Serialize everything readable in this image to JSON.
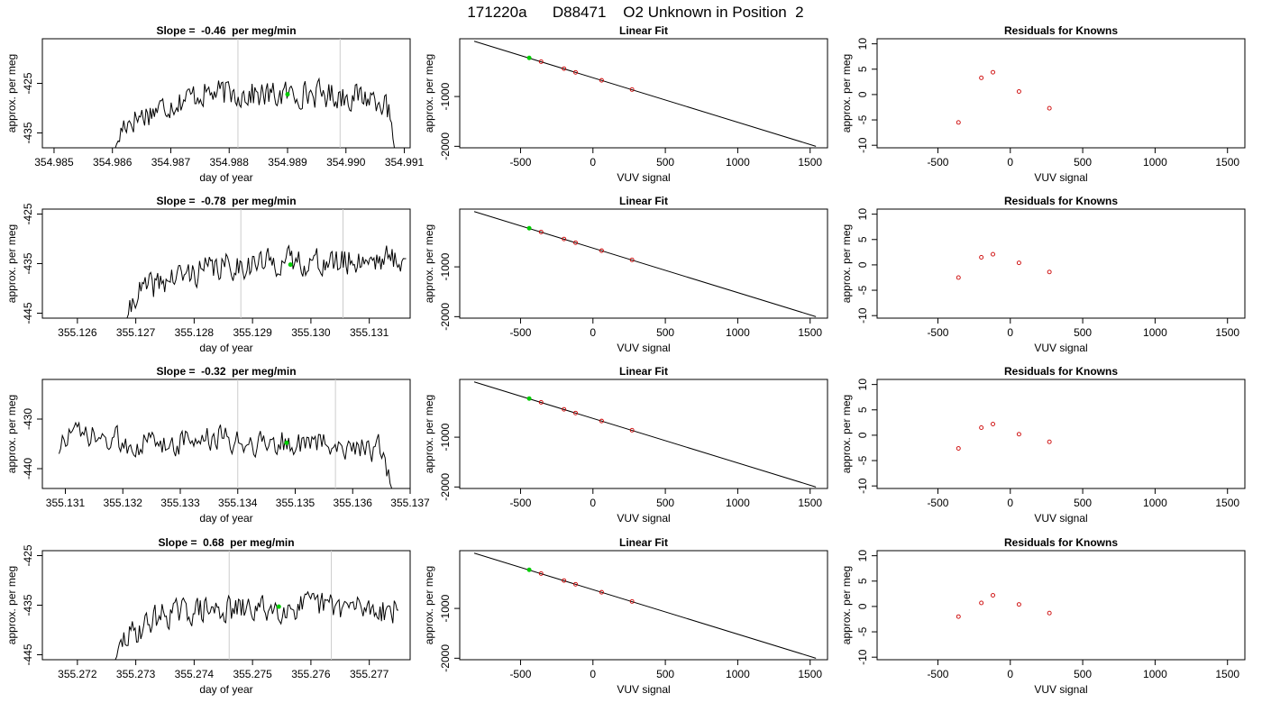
{
  "page_title": "171220a      D88471    O2 Unknown in Position  2",
  "colors": {
    "trace": "#000000",
    "marker": "#00cc00",
    "residual": "#cc0000",
    "vline": "#cccccc"
  },
  "chart_data": [
    {
      "type": "line",
      "panel": "time-series-1",
      "title": "Slope =  -0.46  per meg/min",
      "xlabel": "day of year",
      "ylabel": "approx. per meg",
      "xlim": [
        354.9848,
        354.9911
      ],
      "ylim": [
        -438,
        -416
      ],
      "xticks": [
        354.985,
        354.986,
        354.987,
        354.988,
        354.989,
        354.99,
        354.991
      ],
      "xtick_labels": [
        "354.985",
        "354.986",
        "354.987",
        "354.988",
        "354.989",
        "354.990",
        "354.991"
      ],
      "yticks": [
        -425,
        -435
      ],
      "ytick_labels": [
        "-425",
        "-435"
      ],
      "vlines": [
        354.98815,
        354.9899
      ],
      "trace_start": 354.98605,
      "trace_end": 354.99083,
      "trace_seed": 17,
      "trace_points": [
        [
          354.98605,
          -438
        ],
        [
          354.9862,
          -433
        ],
        [
          354.9868,
          -430
        ],
        [
          354.9875,
          -427
        ],
        [
          354.9881,
          -427
        ],
        [
          354.9887,
          -427.5
        ],
        [
          354.9893,
          -427
        ],
        [
          354.99,
          -427.5
        ],
        [
          354.9906,
          -428
        ],
        [
          354.99075,
          -432
        ],
        [
          354.99083,
          -438
        ]
      ],
      "marker": [
        354.989,
        -427.2
      ]
    },
    {
      "type": "scatter",
      "panel": "linear-fit-1",
      "title": "Linear Fit",
      "xlabel": "VUV signal",
      "ylabel": "approx. per meg",
      "xlim": [
        -920,
        1620
      ],
      "ylim": [
        -2030,
        160
      ],
      "xticks": [
        -500,
        0,
        500,
        1000,
        1500
      ],
      "xtick_labels": [
        "-500",
        "0",
        "500",
        "1000",
        "1500"
      ],
      "yticks": [
        -1000,
        -2000
      ],
      "ytick_labels": [
        "-1000",
        "-2000"
      ],
      "fit_line": [
        [
          -820,
          110
        ],
        [
          1540,
          -2000
        ]
      ],
      "points": [
        [
          -358,
          -300
        ],
        [
          -200,
          -440
        ],
        [
          -120,
          -515
        ],
        [
          60,
          -675
        ],
        [
          270,
          -860
        ]
      ],
      "marker": [
        -440,
        -225
      ]
    },
    {
      "type": "scatter",
      "panel": "residuals-1",
      "title": "Residuals for Knowns",
      "xlabel": "VUV signal",
      "ylabel": "approx. per meg",
      "xlim": [
        -920,
        1620
      ],
      "ylim": [
        -10.5,
        11
      ],
      "xticks": [
        -500,
        0,
        500,
        1000,
        1500
      ],
      "xtick_labels": [
        "-500",
        "0",
        "500",
        "1000",
        "1500"
      ],
      "yticks": [
        10,
        5,
        0,
        -5,
        -10
      ],
      "ytick_labels": [
        "10",
        "5",
        "0",
        "-5",
        "-10"
      ],
      "points": [
        [
          -358,
          -5.5
        ],
        [
          -200,
          3.3
        ],
        [
          -120,
          4.4
        ],
        [
          60,
          0.6
        ],
        [
          270,
          -2.7
        ]
      ]
    },
    {
      "type": "line",
      "panel": "time-series-2",
      "title": "Slope =  -0.78  per meg/min",
      "xlabel": "day of year",
      "ylabel": "approx. per meg",
      "xlim": [
        355.1254,
        355.1317
      ],
      "ylim": [
        -446,
        -424
      ],
      "xticks": [
        355.126,
        355.127,
        355.128,
        355.129,
        355.13,
        355.131
      ],
      "xtick_labels": [
        "355.126",
        "355.127",
        "355.128",
        "355.129",
        "355.130",
        "355.131"
      ],
      "yticks": [
        -425,
        -435,
        -445
      ],
      "ytick_labels": [
        "-425",
        "-435",
        "-445"
      ],
      "vlines": [
        355.1288,
        355.13055
      ],
      "trace_start": 355.12685,
      "trace_end": 355.13163,
      "trace_seed": 41,
      "trace_points": [
        [
          355.12685,
          -446
        ],
        [
          355.127,
          -441
        ],
        [
          355.1276,
          -438
        ],
        [
          355.1283,
          -436
        ],
        [
          355.129,
          -435
        ],
        [
          355.1297,
          -434.5
        ],
        [
          355.1304,
          -435
        ],
        [
          355.131,
          -434
        ],
        [
          355.13163,
          -434
        ]
      ],
      "marker": [
        355.12965,
        -435.2
      ]
    },
    {
      "type": "scatter",
      "panel": "linear-fit-2",
      "title": "Linear Fit",
      "xlabel": "VUV signal",
      "ylabel": "approx. per meg",
      "xlim": [
        -920,
        1620
      ],
      "ylim": [
        -2030,
        160
      ],
      "xticks": [
        -500,
        0,
        500,
        1000,
        1500
      ],
      "xtick_labels": [
        "-500",
        "0",
        "500",
        "1000",
        "1500"
      ],
      "yticks": [
        -1000,
        -2000
      ],
      "ytick_labels": [
        "-1000",
        "-2000"
      ],
      "fit_line": [
        [
          -820,
          110
        ],
        [
          1540,
          -2000
        ]
      ],
      "points": [
        [
          -358,
          -300
        ],
        [
          -200,
          -440
        ],
        [
          -120,
          -515
        ],
        [
          60,
          -675
        ],
        [
          270,
          -860
        ]
      ],
      "marker": [
        -440,
        -225
      ]
    },
    {
      "type": "scatter",
      "panel": "residuals-2",
      "title": "Residuals for Knowns",
      "xlabel": "VUV signal",
      "ylabel": "approx. per meg",
      "xlim": [
        -920,
        1620
      ],
      "ylim": [
        -10.5,
        11
      ],
      "xticks": [
        -500,
        0,
        500,
        1000,
        1500
      ],
      "xtick_labels": [
        "-500",
        "0",
        "500",
        "1000",
        "1500"
      ],
      "yticks": [
        10,
        5,
        0,
        -5,
        -10
      ],
      "ytick_labels": [
        "10",
        "5",
        "0",
        "-5",
        "-10"
      ],
      "points": [
        [
          -358,
          -2.5
        ],
        [
          -200,
          1.5
        ],
        [
          -120,
          2.1
        ],
        [
          60,
          0.4
        ],
        [
          270,
          -1.4
        ]
      ]
    },
    {
      "type": "line",
      "panel": "time-series-3",
      "title": "Slope =  -0.32  per meg/min",
      "xlabel": "day of year",
      "ylabel": "approx. per meg",
      "xlim": [
        355.1306,
        355.137
      ],
      "ylim": [
        -444,
        -422
      ],
      "xticks": [
        355.131,
        355.132,
        355.133,
        355.134,
        355.135,
        355.136,
        355.137
      ],
      "xtick_labels": [
        "355.131",
        "355.132",
        "355.133",
        "355.134",
        "355.135",
        "355.136",
        "355.137"
      ],
      "yticks": [
        -430,
        -440
      ],
      "ytick_labels": [
        "-430",
        "-440"
      ],
      "vlines": [
        355.134,
        355.1357
      ],
      "trace_start": 355.13089,
      "trace_end": 355.13668,
      "trace_seed": 73,
      "trace_points": [
        [
          355.13089,
          -437
        ],
        [
          355.131,
          -433
        ],
        [
          355.1318,
          -434.5
        ],
        [
          355.1326,
          -435
        ],
        [
          355.1334,
          -434
        ],
        [
          355.1342,
          -434.5
        ],
        [
          355.135,
          -435
        ],
        [
          355.1358,
          -435
        ],
        [
          355.13645,
          -436
        ],
        [
          355.13668,
          -444
        ]
      ],
      "marker": [
        355.13485,
        -434.8
      ]
    },
    {
      "type": "scatter",
      "panel": "linear-fit-3",
      "title": "Linear Fit",
      "xlabel": "VUV signal",
      "ylabel": "approx. per meg",
      "xlim": [
        -920,
        1620
      ],
      "ylim": [
        -2030,
        160
      ],
      "xticks": [
        -500,
        0,
        500,
        1000,
        1500
      ],
      "xtick_labels": [
        "-500",
        "0",
        "500",
        "1000",
        "1500"
      ],
      "yticks": [
        -1000,
        -2000
      ],
      "ytick_labels": [
        "-1000",
        "-2000"
      ],
      "fit_line": [
        [
          -820,
          110
        ],
        [
          1540,
          -2000
        ]
      ],
      "points": [
        [
          -358,
          -300
        ],
        [
          -200,
          -440
        ],
        [
          -120,
          -515
        ],
        [
          60,
          -675
        ],
        [
          270,
          -860
        ]
      ],
      "marker": [
        -440,
        -225
      ]
    },
    {
      "type": "scatter",
      "panel": "residuals-3",
      "title": "Residuals for Knowns",
      "xlabel": "VUV signal",
      "ylabel": "approx. per meg",
      "xlim": [
        -920,
        1620
      ],
      "ylim": [
        -10.5,
        11
      ],
      "xticks": [
        -500,
        0,
        500,
        1000,
        1500
      ],
      "xtick_labels": [
        "-500",
        "0",
        "500",
        "1000",
        "1500"
      ],
      "yticks": [
        10,
        5,
        0,
        -5,
        -10
      ],
      "ytick_labels": [
        "10",
        "5",
        "0",
        "-5",
        "-10"
      ],
      "points": [
        [
          -358,
          -2.6
        ],
        [
          -200,
          1.5
        ],
        [
          -120,
          2.2
        ],
        [
          60,
          0.2
        ],
        [
          270,
          -1.3
        ]
      ]
    },
    {
      "type": "line",
      "panel": "time-series-4",
      "title": "Slope =  0.68  per meg/min",
      "xlabel": "day of year",
      "ylabel": "approx. per meg",
      "xlim": [
        355.2714,
        355.2777
      ],
      "ylim": [
        -446,
        -424
      ],
      "xticks": [
        355.272,
        355.273,
        355.274,
        355.275,
        355.276,
        355.277
      ],
      "xtick_labels": [
        "355.272",
        "355.273",
        "355.274",
        "355.275",
        "355.276",
        "355.277"
      ],
      "yticks": [
        -425,
        -435,
        -445
      ],
      "ytick_labels": [
        "-425",
        "-435",
        "-445"
      ],
      "vlines": [
        355.2746,
        355.27635
      ],
      "trace_start": 355.27265,
      "trace_end": 355.2775,
      "trace_seed": 29,
      "trace_points": [
        [
          355.27265,
          -446
        ],
        [
          355.2728,
          -442
        ],
        [
          355.2734,
          -437
        ],
        [
          355.2741,
          -436
        ],
        [
          355.2748,
          -436
        ],
        [
          355.2755,
          -435.5
        ],
        [
          355.2762,
          -435
        ],
        [
          355.2768,
          -435.5
        ],
        [
          355.2775,
          -436
        ]
      ],
      "marker": [
        355.27545,
        -435.3
      ]
    },
    {
      "type": "scatter",
      "panel": "linear-fit-4",
      "title": "Linear Fit",
      "xlabel": "VUV signal",
      "ylabel": "approx. per meg",
      "xlim": [
        -920,
        1620
      ],
      "ylim": [
        -2030,
        160
      ],
      "xticks": [
        -500,
        0,
        500,
        1000,
        1500
      ],
      "xtick_labels": [
        "-500",
        "0",
        "500",
        "1000",
        "1500"
      ],
      "yticks": [
        -1000,
        -2000
      ],
      "ytick_labels": [
        "-1000",
        "-2000"
      ],
      "fit_line": [
        [
          -820,
          110
        ],
        [
          1540,
          -2000
        ]
      ],
      "points": [
        [
          -358,
          -300
        ],
        [
          -200,
          -440
        ],
        [
          -120,
          -515
        ],
        [
          60,
          -675
        ],
        [
          270,
          -860
        ]
      ],
      "marker": [
        -440,
        -225
      ]
    },
    {
      "type": "scatter",
      "panel": "residuals-4",
      "title": "Residuals for Knowns",
      "xlabel": "VUV signal",
      "ylabel": "approx. per meg",
      "xlim": [
        -920,
        1620
      ],
      "ylim": [
        -10.5,
        11
      ],
      "xticks": [
        -500,
        0,
        500,
        1000,
        1500
      ],
      "xtick_labels": [
        "-500",
        "0",
        "500",
        "1000",
        "1500"
      ],
      "yticks": [
        10,
        5,
        0,
        -5,
        -10
      ],
      "ytick_labels": [
        "10",
        "5",
        "0",
        "-5",
        "-10"
      ],
      "points": [
        [
          -358,
          -2.0
        ],
        [
          -200,
          0.7
        ],
        [
          -120,
          2.2
        ],
        [
          60,
          0.4
        ],
        [
          270,
          -1.3
        ]
      ]
    }
  ]
}
